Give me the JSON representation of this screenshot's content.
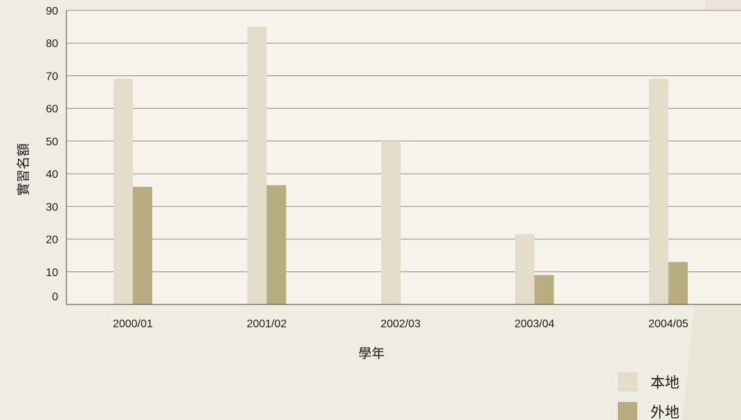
{
  "chart_data": {
    "type": "bar",
    "categories": [
      "2000/01",
      "2001/02",
      "2002/03",
      "2003/04",
      "2004/05"
    ],
    "series": [
      {
        "name": "本地",
        "color": "#e2dcc9",
        "values": [
          69,
          85,
          50,
          21.5,
          69
        ]
      },
      {
        "name": "外地",
        "color": "#b8ad80",
        "values": [
          36,
          36.5,
          0,
          9,
          13
        ]
      }
    ],
    "xlabel": "學年",
    "ylabel": "實習名額",
    "ylim": [
      0,
      90
    ],
    "yticks": [
      0,
      10,
      20,
      30,
      40,
      50,
      60,
      70,
      80,
      90
    ],
    "grid": true,
    "legend_position": "bottom-right"
  }
}
